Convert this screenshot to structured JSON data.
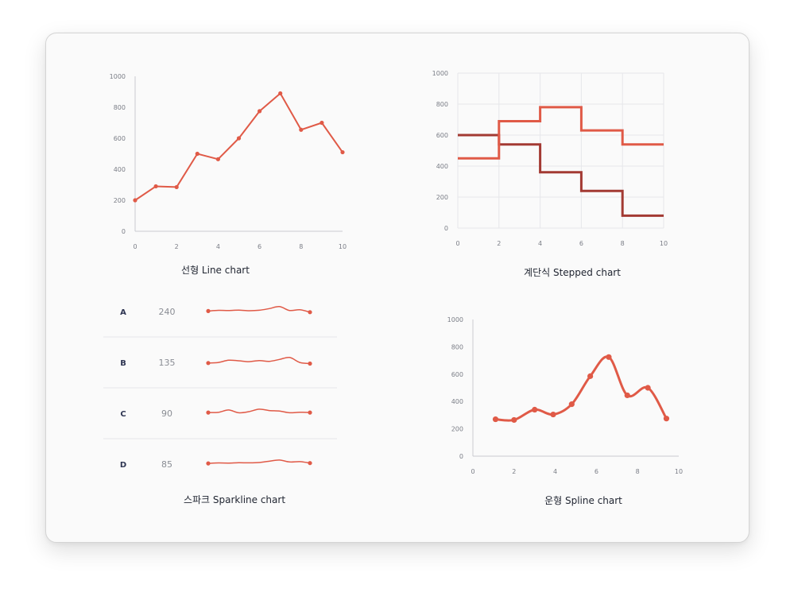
{
  "colors": {
    "accent": "#e05a47",
    "accent_dark": "#a33a33",
    "axis": "#c9cbd0",
    "grid": "#e6e7ea",
    "divider": "#e6e7ea"
  },
  "chart_data": [
    {
      "type": "line",
      "title": "선형 Line chart",
      "x": [
        0,
        1,
        2,
        3,
        4,
        5,
        6,
        7,
        8,
        9,
        10
      ],
      "series": [
        {
          "values": [
            200,
            290,
            285,
            500,
            465,
            600,
            775,
            890,
            655,
            700,
            510
          ]
        }
      ],
      "xlim": [
        0,
        10
      ],
      "ylim": [
        0,
        1000
      ],
      "xticks": [
        "0",
        "2",
        "4",
        "6",
        "8",
        "10"
      ],
      "yticks": [
        "0",
        "200",
        "400",
        "600",
        "800",
        "1000"
      ],
      "grid": false
    },
    {
      "type": "line",
      "title": "계단식 Stepped chart",
      "step": true,
      "x": [
        0,
        2,
        4,
        6,
        8,
        10
      ],
      "series": [
        {
          "values": [
            600,
            540,
            360,
            240,
            80,
            80
          ],
          "color": "#a33a33"
        },
        {
          "values": [
            450,
            690,
            780,
            630,
            540,
            540
          ],
          "color": "#e05a47"
        }
      ],
      "xlim": [
        0,
        10
      ],
      "ylim": [
        0,
        1000
      ],
      "xticks": [
        "0",
        "2",
        "4",
        "6",
        "8",
        "10"
      ],
      "yticks": [
        "0",
        "200",
        "400",
        "600",
        "800",
        "1000"
      ],
      "grid": true
    },
    {
      "type": "table",
      "title": "스파크 Sparkline chart",
      "rows": [
        {
          "label": "A",
          "value": "240",
          "spark": [
            40,
            46,
            45,
            48,
            43,
            47,
            62,
            80,
            45,
            52,
            30
          ]
        },
        {
          "label": "B",
          "value": "135",
          "spark": [
            30,
            35,
            55,
            50,
            42,
            52,
            45,
            62,
            80,
            35,
            25
          ]
        },
        {
          "label": "C",
          "value": "90",
          "spark": [
            42,
            44,
            65,
            40,
            50,
            72,
            60,
            55,
            40,
            45,
            42
          ]
        },
        {
          "label": "D",
          "value": "85",
          "spark": [
            42,
            46,
            45,
            48,
            47,
            50,
            62,
            72,
            55,
            58,
            45
          ]
        }
      ]
    },
    {
      "type": "line",
      "title": "운형 Spline chart",
      "smooth": true,
      "x": [
        1.1,
        2.0,
        3.0,
        3.9,
        4.8,
        5.7,
        6.6,
        7.5,
        8.5,
        9.4
      ],
      "series": [
        {
          "values": [
            270,
            265,
            340,
            305,
            380,
            585,
            725,
            445,
            500,
            275
          ]
        }
      ],
      "xlim": [
        0,
        10
      ],
      "ylim": [
        0,
        1000
      ],
      "xticks": [
        "0",
        "2",
        "4",
        "6",
        "8",
        "10"
      ],
      "yticks": [
        "0",
        "200",
        "400",
        "600",
        "800",
        "1000"
      ],
      "grid": false
    }
  ]
}
